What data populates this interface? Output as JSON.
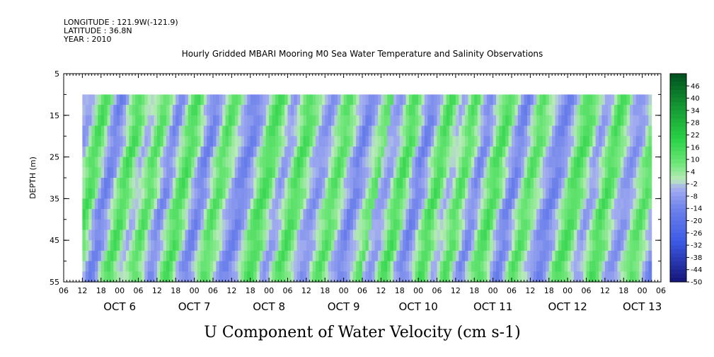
{
  "header": {
    "longitude": "LONGITUDE : 121.9W(-121.9)",
    "latitude": "LATITUDE : 36.8N",
    "year": "YEAR : 2010"
  },
  "chart_data": {
    "type": "heatmap",
    "title": "Hourly Gridded MBARI Mooring M0 Sea Water Temperature and Salinity Observations",
    "xlabel": "U Component of Water Velocity (cm s-1)",
    "ylabel": "DEPTH (m)",
    "x_start_hour": "06",
    "x_hour_ticks": [
      "06",
      "12",
      "18",
      "00",
      "06",
      "12",
      "18",
      "00",
      "06",
      "12",
      "18",
      "00",
      "06",
      "12",
      "18",
      "00",
      "06",
      "12",
      "18",
      "00",
      "06",
      "12",
      "18",
      "00",
      "06",
      "12",
      "18",
      "00",
      "06",
      "12",
      "18",
      "00",
      "06"
    ],
    "day_labels": [
      "OCT  6",
      "OCT  7",
      "OCT  8",
      "OCT  9",
      "OCT 10",
      "OCT 11",
      "OCT 12",
      "OCT 13"
    ],
    "ylim": [
      5,
      55
    ],
    "y_ticks": [
      "5",
      "15",
      "25",
      "35",
      "45",
      "55"
    ],
    "data_depth_range": [
      10,
      55
    ],
    "data_time_range_hours": [
      6,
      195
    ],
    "colorbar_labels": [
      "46",
      "40",
      "34",
      "28",
      "22",
      "16",
      "10",
      "4",
      "-2",
      "-8",
      "-14",
      "-20",
      "-26",
      "-32",
      "-38",
      "-44",
      "-50"
    ],
    "colorbar_range": [
      -50,
      52
    ],
    "column_pattern_u_cm_s": [
      -4,
      -6,
      -8,
      -6,
      0,
      6,
      12,
      14,
      10,
      4,
      -4,
      -10,
      -14,
      -12,
      -8,
      -2,
      4,
      10,
      14,
      12,
      6,
      0,
      -4,
      -2,
      2,
      8,
      12,
      10,
      4,
      -2,
      -8,
      -12,
      -10,
      -4,
      2,
      8,
      12,
      14,
      10,
      4,
      -2,
      -8,
      -12,
      -14,
      -10,
      -4,
      2,
      8,
      12,
      10,
      6,
      2,
      -2,
      -6,
      -10,
      -12,
      -14,
      -12,
      -8,
      -4,
      2,
      8,
      12,
      14,
      12,
      8,
      2,
      -4,
      -8,
      -6,
      -2,
      4,
      10,
      14,
      12,
      8,
      4,
      -2,
      -6,
      -8,
      -10,
      -8,
      -4,
      2,
      6,
      10,
      12,
      8,
      4,
      -2,
      -6,
      -10,
      -14,
      -12,
      -8,
      -4,
      0,
      4,
      8,
      10
    ]
  }
}
